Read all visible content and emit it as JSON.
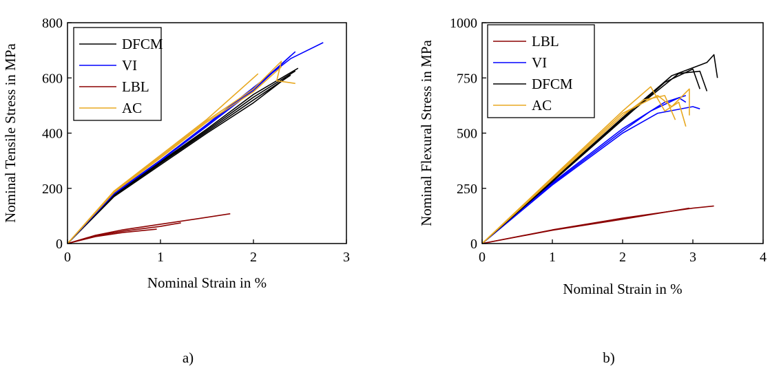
{
  "chart_data": [
    {
      "type": "line",
      "panel_label": "a)",
      "xlabel": "Nominal Strain in %",
      "ylabel": "Nominal Tensile Stress in MPa",
      "xlim": [
        0,
        3
      ],
      "ylim": [
        0,
        800
      ],
      "xticks": [
        0,
        1,
        2,
        3
      ],
      "yticks": [
        0,
        200,
        400,
        600,
        800
      ],
      "legend_position": "top-left",
      "series": [
        {
          "name": "DFCM",
          "color": "#000000",
          "curves": [
            [
              [
                0,
                0
              ],
              [
                0.5,
                170
              ],
              [
                1,
                285
              ],
              [
                1.5,
                400
              ],
              [
                2,
                510
              ],
              [
                2.35,
                600
              ]
            ],
            [
              [
                0,
                0
              ],
              [
                0.5,
                172
              ],
              [
                1,
                290
              ],
              [
                1.5,
                405
              ],
              [
                2,
                520
              ],
              [
                2.4,
                610
              ]
            ],
            [
              [
                0,
                0
              ],
              [
                0.5,
                175
              ],
              [
                1,
                293
              ],
              [
                1.5,
                410
              ],
              [
                2,
                530
              ],
              [
                2.45,
                625
              ]
            ],
            [
              [
                0,
                0
              ],
              [
                0.5,
                177
              ],
              [
                1,
                296
              ],
              [
                1.5,
                415
              ],
              [
                2,
                540
              ],
              [
                2.48,
                635
              ]
            ]
          ]
        },
        {
          "name": "VI",
          "color": "#0000ff",
          "curves": [
            [
              [
                0,
                0
              ],
              [
                0.5,
                180
              ],
              [
                1,
                300
              ],
              [
                1.5,
                430
              ],
              [
                2,
                560
              ],
              [
                2.45,
                695
              ]
            ],
            [
              [
                0,
                0
              ],
              [
                0.5,
                180
              ],
              [
                1,
                300
              ],
              [
                1.5,
                425
              ],
              [
                2,
                555
              ],
              [
                2.4,
                680
              ]
            ],
            [
              [
                0,
                0
              ],
              [
                0.5,
                182
              ],
              [
                1,
                302
              ],
              [
                1.5,
                432
              ],
              [
                2,
                565
              ],
              [
                2.4,
                670
              ],
              [
                2.75,
                728
              ]
            ]
          ]
        },
        {
          "name": "LBL",
          "color": "#8b0000",
          "curves": [
            [
              [
                0,
                0
              ],
              [
                0.3,
                30
              ],
              [
                0.6,
                50
              ],
              [
                1,
                70
              ],
              [
                1.4,
                90
              ],
              [
                1.75,
                108
              ]
            ],
            [
              [
                0,
                0
              ],
              [
                0.3,
                28
              ],
              [
                0.6,
                45
              ],
              [
                1,
                62
              ],
              [
                1.22,
                75
              ]
            ],
            [
              [
                0,
                0
              ],
              [
                0.3,
                25
              ],
              [
                0.6,
                40
              ],
              [
                0.96,
                52
              ]
            ]
          ]
        },
        {
          "name": "AC",
          "color": "#e8a820",
          "curves": [
            [
              [
                0,
                0
              ],
              [
                0.5,
                190
              ],
              [
                1,
                320
              ],
              [
                1.5,
                450
              ],
              [
                2.05,
                615
              ]
            ],
            [
              [
                0,
                0
              ],
              [
                0.5,
                188
              ],
              [
                1,
                315
              ],
              [
                1.5,
                445
              ],
              [
                2,
                560
              ],
              [
                2.3,
                660
              ],
              [
                2.25,
                590
              ],
              [
                2.45,
                580
              ]
            ],
            [
              [
                0,
                0
              ],
              [
                0.5,
                185
              ],
              [
                1,
                310
              ],
              [
                1.5,
                440
              ],
              [
                2,
                550
              ],
              [
                2.3,
                640
              ]
            ]
          ]
        }
      ]
    },
    {
      "type": "line",
      "panel_label": "b)",
      "xlabel": "Nominal Strain in %",
      "ylabel": "Nominal Flexural Stress in MPa",
      "xlim": [
        0,
        4
      ],
      "ylim": [
        0,
        1000
      ],
      "xticks": [
        0,
        1,
        2,
        3,
        4
      ],
      "yticks": [
        0,
        250,
        500,
        750,
        1000
      ],
      "legend_position": "top-left",
      "series": [
        {
          "name": "LBL",
          "color": "#8b0000",
          "curves": [
            [
              [
                0,
                0
              ],
              [
                1,
                60
              ],
              [
                2,
                110
              ],
              [
                2.95,
                160
              ]
            ],
            [
              [
                0,
                0
              ],
              [
                1,
                62
              ],
              [
                2,
                115
              ],
              [
                3,
                160
              ],
              [
                3.3,
                170
              ]
            ]
          ]
        },
        {
          "name": "VI",
          "color": "#0000ff",
          "curves": [
            [
              [
                0,
                0
              ],
              [
                1,
                270
              ],
              [
                2,
                510
              ],
              [
                2.4,
                600
              ],
              [
                2.8,
                660
              ],
              [
                2.9,
                640
              ]
            ],
            [
              [
                0,
                0
              ],
              [
                1,
                265
              ],
              [
                2,
                500
              ],
              [
                2.5,
                590
              ],
              [
                3,
                620
              ],
              [
                3.1,
                610
              ]
            ],
            [
              [
                0,
                0
              ],
              [
                1,
                275
              ],
              [
                2,
                520
              ],
              [
                2.6,
                640
              ],
              [
                2.9,
                670
              ]
            ]
          ]
        },
        {
          "name": "DFCM",
          "color": "#000000",
          "curves": [
            [
              [
                0,
                0
              ],
              [
                1,
                280
              ],
              [
                2,
                560
              ],
              [
                2.6,
                730
              ],
              [
                3.0,
                790
              ],
              [
                3.1,
                700
              ]
            ],
            [
              [
                0,
                0
              ],
              [
                1,
                285
              ],
              [
                2,
                570
              ],
              [
                2.7,
                760
              ],
              [
                3.2,
                820
              ],
              [
                3.3,
                855
              ],
              [
                3.35,
                750
              ]
            ],
            [
              [
                0,
                0
              ],
              [
                1,
                282
              ],
              [
                2,
                565
              ],
              [
                2.8,
                770
              ],
              [
                3.1,
                780
              ],
              [
                3.2,
                690
              ]
            ]
          ]
        },
        {
          "name": "AC",
          "color": "#e8a820",
          "curves": [
            [
              [
                0,
                0
              ],
              [
                1,
                300
              ],
              [
                2,
                600
              ],
              [
                2.4,
                710
              ],
              [
                2.6,
                600
              ],
              [
                2.8,
                640
              ],
              [
                2.9,
                530
              ]
            ],
            [
              [
                0,
                0
              ],
              [
                1,
                295
              ],
              [
                2,
                590
              ],
              [
                2.5,
                670
              ],
              [
                2.7,
                620
              ],
              [
                2.95,
                700
              ],
              [
                2.95,
                580
              ]
            ],
            [
              [
                0,
                0
              ],
              [
                1,
                290
              ],
              [
                2,
                580
              ],
              [
                2.3,
                650
              ],
              [
                2.6,
                670
              ],
              [
                2.75,
                560
              ]
            ]
          ]
        }
      ]
    }
  ]
}
